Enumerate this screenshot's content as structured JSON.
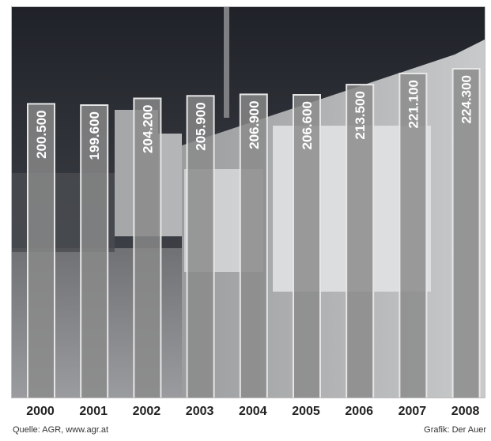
{
  "chart_data": {
    "type": "bar",
    "categories": [
      "2000",
      "2001",
      "2002",
      "2003",
      "2004",
      "2005",
      "2006",
      "2007",
      "2008"
    ],
    "values": [
      200500,
      199600,
      204200,
      205900,
      206900,
      206600,
      213500,
      221100,
      224300
    ],
    "value_labels": [
      "200.500",
      "199.600",
      "204.200",
      "205.900",
      "206.900",
      "206.600",
      "213.500",
      "221.100",
      "224.300"
    ],
    "ylim": [
      0,
      224300
    ],
    "grid": false,
    "colors": {
      "bar_fill": "#8a8a8a",
      "bar_outline": "#e6e6e6",
      "label": "#ffffff",
      "background_photo_dark": "#2b2e34",
      "background_photo_mid": "#6b6d70",
      "background_photo_light": "#b9bbbd"
    }
  },
  "footer": {
    "source": "Quelle: AGR, www.agr.at",
    "credit": "Grafik: Der Auer"
  }
}
